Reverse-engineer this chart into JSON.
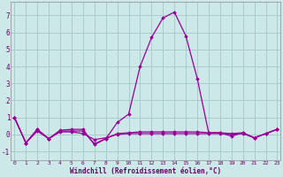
{
  "xlabel": "Windchill (Refroidissement éolien,°C)",
  "bg_color": "#cce8e8",
  "grid_color": "#aacccc",
  "line_color": "#990099",
  "x": [
    0,
    1,
    2,
    3,
    4,
    5,
    6,
    7,
    8,
    9,
    10,
    11,
    12,
    13,
    14,
    15,
    16,
    17,
    18,
    19,
    20,
    21,
    22,
    23
  ],
  "series1": [
    1.0,
    -0.5,
    0.3,
    -0.25,
    0.25,
    0.3,
    0.3,
    -0.6,
    -0.25,
    0.7,
    1.2,
    4.0,
    5.7,
    6.85,
    7.2,
    5.8,
    3.3,
    0.1,
    0.1,
    -0.1,
    0.1,
    -0.2,
    0.05,
    0.3
  ],
  "series2": [
    1.0,
    -0.5,
    0.3,
    -0.25,
    0.2,
    0.2,
    0.2,
    -0.55,
    -0.25,
    0.05,
    0.1,
    0.15,
    0.15,
    0.15,
    0.15,
    0.15,
    0.15,
    0.1,
    0.1,
    0.05,
    0.1,
    -0.2,
    0.05,
    0.3
  ],
  "series3": [
    1.0,
    -0.5,
    0.2,
    -0.25,
    0.15,
    0.15,
    0.05,
    -0.3,
    -0.2,
    0.0,
    0.05,
    0.05,
    0.05,
    0.05,
    0.05,
    0.05,
    0.05,
    0.05,
    0.05,
    0.0,
    0.05,
    -0.2,
    0.05,
    0.3
  ],
  "ylim": [
    -1.5,
    7.8
  ],
  "yticks": [
    -1,
    0,
    1,
    2,
    3,
    4,
    5,
    6,
    7
  ],
  "xticks": [
    0,
    1,
    2,
    3,
    4,
    5,
    6,
    7,
    8,
    9,
    10,
    11,
    12,
    13,
    14,
    15,
    16,
    17,
    18,
    19,
    20,
    21,
    22,
    23
  ],
  "xlim": [
    -0.3,
    23.3
  ]
}
